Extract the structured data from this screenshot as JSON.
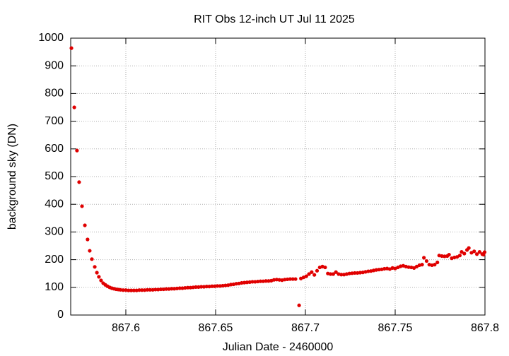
{
  "chart_data": {
    "type": "scatter",
    "title": "RIT Obs 12-inch UT Jul 11 2025",
    "x_label": "Julian Date - 2460000",
    "y_label": "background sky (DN)",
    "color": "#e00000",
    "grid": true,
    "xlim": [
      867.5693,
      867.8
    ],
    "ylim": [
      0,
      1000
    ],
    "xticks": [
      867.6,
      867.65,
      867.7,
      867.75,
      867.8
    ],
    "yticks": [
      0,
      100,
      200,
      300,
      400,
      500,
      600,
      700,
      800,
      900,
      1000
    ],
    "x": [
      867.5697,
      867.5713,
      867.5728,
      867.574,
      867.5756,
      867.5772,
      867.5787,
      867.5799,
      867.5811,
      867.5827,
      867.5839,
      867.585,
      867.5862,
      867.5874,
      867.5886,
      867.5898,
      867.591,
      867.5922,
      867.5934,
      867.5946,
      867.5958,
      867.597,
      867.5985,
      867.6,
      867.6015,
      867.603,
      867.6045,
      867.606,
      867.6075,
      867.609,
      867.6105,
      867.612,
      867.6135,
      867.615,
      867.6165,
      867.618,
      867.6195,
      867.621,
      867.6225,
      867.624,
      867.6255,
      867.627,
      867.6285,
      867.63,
      867.6315,
      867.633,
      867.6345,
      867.636,
      867.6375,
      867.639,
      867.6405,
      867.642,
      867.6435,
      867.645,
      867.6465,
      867.648,
      867.6495,
      867.651,
      867.6525,
      867.654,
      867.6555,
      867.657,
      867.6585,
      867.66,
      867.6615,
      867.663,
      867.6645,
      867.666,
      867.6675,
      867.669,
      867.6705,
      867.672,
      867.6735,
      867.675,
      867.6765,
      867.678,
      867.6795,
      867.681,
      867.6825,
      867.684,
      867.6855,
      867.687,
      867.6885,
      867.69,
      867.6915,
      867.693,
      867.6945,
      867.6965,
      867.6975,
      867.699,
      867.7005,
      867.702,
      867.7035,
      867.705,
      867.7065,
      867.708,
      867.7095,
      867.711,
      867.7125,
      867.714,
      867.7155,
      867.717,
      867.7185,
      867.72,
      867.7215,
      867.723,
      867.7245,
      867.726,
      867.7275,
      867.729,
      867.7305,
      867.732,
      867.7335,
      867.735,
      867.7365,
      867.738,
      867.7395,
      867.741,
      867.7425,
      867.744,
      867.7455,
      867.747,
      867.7485,
      867.75,
      867.7515,
      867.753,
      867.7545,
      867.756,
      867.7575,
      867.759,
      867.7605,
      867.762,
      867.7635,
      867.765,
      867.766,
      867.7675,
      867.769,
      867.7705,
      867.772,
      867.7735,
      867.7745,
      867.776,
      867.7775,
      867.779,
      867.78,
      867.7815,
      867.783,
      867.7845,
      867.786,
      867.787,
      867.7885,
      867.79,
      867.791,
      867.7925,
      867.794,
      867.7955,
      867.797,
      867.7985,
      867.7992,
      867.7998
    ],
    "values": [
      964,
      750,
      594,
      480,
      393,
      324,
      273,
      232,
      202,
      174,
      153,
      138,
      125,
      115,
      109,
      104,
      100,
      97,
      95,
      93,
      92,
      91,
      90,
      90,
      89,
      89,
      89,
      89,
      90,
      90,
      90,
      91,
      91,
      91,
      92,
      92,
      93,
      93,
      94,
      94,
      95,
      95,
      96,
      97,
      97,
      98,
      99,
      99,
      100,
      101,
      101,
      102,
      102,
      103,
      103,
      104,
      104,
      105,
      105,
      106,
      107,
      108,
      110,
      111,
      113,
      114,
      116,
      117,
      118,
      119,
      120,
      120,
      121,
      122,
      122,
      123,
      123,
      124,
      127,
      128,
      127,
      126,
      128,
      129,
      130,
      130,
      130,
      35,
      132,
      136,
      140,
      148,
      155,
      145,
      160,
      172,
      175,
      172,
      150,
      148,
      148,
      155,
      148,
      146,
      146,
      148,
      150,
      151,
      152,
      152,
      153,
      154,
      156,
      158,
      159,
      161,
      163,
      164,
      165,
      167,
      168,
      166,
      170,
      168,
      172,
      176,
      178,
      175,
      173,
      172,
      170,
      175,
      180,
      182,
      207,
      195,
      182,
      180,
      182,
      190,
      215,
      213,
      212,
      213,
      218,
      205,
      208,
      210,
      215,
      228,
      222,
      235,
      242,
      225,
      230,
      220,
      228,
      220,
      218,
      227
    ]
  }
}
